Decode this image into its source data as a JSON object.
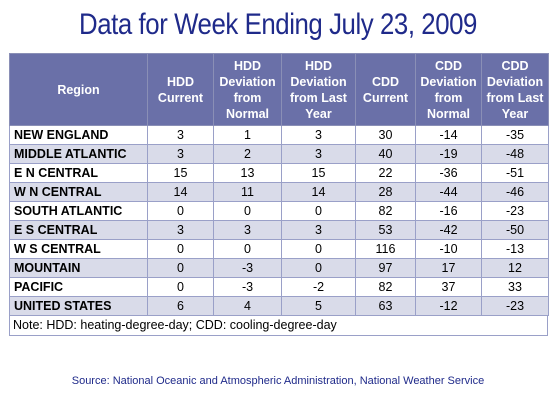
{
  "title": "Data for Week Ending July 23, 2009",
  "table": {
    "headers": [
      "Region",
      "HDD Current",
      "HDD Deviation from Normal",
      "HDD Deviation from Last Year",
      "CDD Current",
      "CDD Deviation from Normal",
      "CDD Deviation from Last Year"
    ],
    "rows": [
      [
        "NEW ENGLAND",
        "3",
        "1",
        "3",
        "30",
        "-14",
        "-35"
      ],
      [
        "MIDDLE ATLANTIC",
        "3",
        "2",
        "3",
        "40",
        "-19",
        "-48"
      ],
      [
        "E N CENTRAL",
        "15",
        "13",
        "15",
        "22",
        "-36",
        "-51"
      ],
      [
        "W N CENTRAL",
        "14",
        "11",
        "14",
        "28",
        "-44",
        "-46"
      ],
      [
        "SOUTH ATLANTIC",
        "0",
        "0",
        "0",
        "82",
        "-16",
        "-23"
      ],
      [
        "E S CENTRAL",
        "3",
        "3",
        "3",
        "53",
        "-42",
        "-50"
      ],
      [
        "W S CENTRAL",
        "0",
        "0",
        "0",
        "116",
        "-10",
        "-13"
      ],
      [
        "MOUNTAIN",
        "0",
        "-3",
        "0",
        "97",
        "17",
        "12"
      ],
      [
        "PACIFIC",
        "0",
        "-3",
        "-2",
        "82",
        "37",
        "33"
      ],
      [
        "UNITED STATES",
        "6",
        "4",
        "5",
        "63",
        "-12",
        "-23"
      ]
    ]
  },
  "note": "Note: HDD: heating-degree-day; CDD: cooling-degree-day",
  "source": "Source:  National Oceanic and Atmospheric Administration, National Weather Service"
}
